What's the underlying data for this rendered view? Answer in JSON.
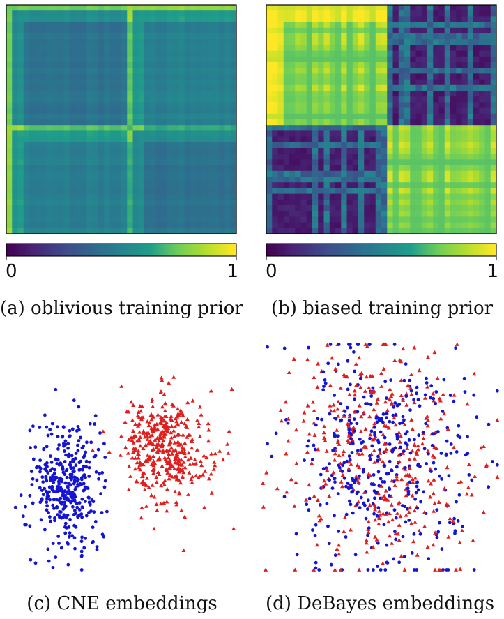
{
  "figure": {
    "captions": {
      "a": "(a) oblivious training prior",
      "b": "(b) biased training prior",
      "c": "(c) CNE embeddings",
      "d": "(d) DeBayes embeddings"
    }
  },
  "colors": {
    "blue_group": "#1414d2",
    "red_group": "#e01e1e",
    "viridis": [
      "#440154",
      "#482777",
      "#3f4a8a",
      "#31678e",
      "#26838f",
      "#1f9d8a",
      "#6cce5a",
      "#b6de2b",
      "#fee825"
    ]
  },
  "chart_data": [
    {
      "type": "heatmap",
      "panel": "a",
      "title": "",
      "n": 40,
      "block_split": 0.52,
      "colormap": "viridis",
      "colorbar": {
        "min": 0,
        "max": 1,
        "tick_labels": [
          "0",
          "1"
        ]
      },
      "value_levels": {
        "within_block": 0.38,
        "between_block": 0.44,
        "banded_low": 0.33,
        "banded_high": 0.62
      }
    },
    {
      "type": "heatmap",
      "panel": "b",
      "title": "",
      "n": 40,
      "block_split": 0.52,
      "colormap": "viridis",
      "colorbar": {
        "min": 0,
        "max": 1,
        "tick_labels": [
          "0",
          "1"
        ]
      },
      "value_levels": {
        "within_block": 0.72,
        "within_block_high": 0.95,
        "between_block": 0.05,
        "between_block_high": 0.48
      }
    },
    {
      "type": "scatter",
      "panel": "c",
      "title": "",
      "xlim": [
        -4,
        4
      ],
      "ylim": [
        -3,
        3
      ],
      "axes_visible": false,
      "series": [
        {
          "group": "blue",
          "marker": "circle",
          "count": 380,
          "center": [
            -1.8,
            -0.7
          ],
          "spread": [
            0.55,
            0.75
          ]
        },
        {
          "group": "red",
          "marker": "triangle",
          "count": 420,
          "center": [
            1.4,
            0.2
          ],
          "spread": [
            0.7,
            0.7
          ]
        }
      ]
    },
    {
      "type": "scatter",
      "panel": "d",
      "title": "",
      "xlim": [
        -4,
        4
      ],
      "ylim": [
        -3,
        3
      ],
      "axes_visible": false,
      "series": [
        {
          "group": "blue",
          "marker": "circle",
          "count": 400,
          "center": [
            0.0,
            0.0
          ],
          "spread": [
            1.5,
            1.45
          ]
        },
        {
          "group": "red",
          "marker": "triangle",
          "count": 400,
          "center": [
            0.0,
            0.0
          ],
          "spread": [
            1.5,
            1.45
          ]
        }
      ]
    }
  ]
}
